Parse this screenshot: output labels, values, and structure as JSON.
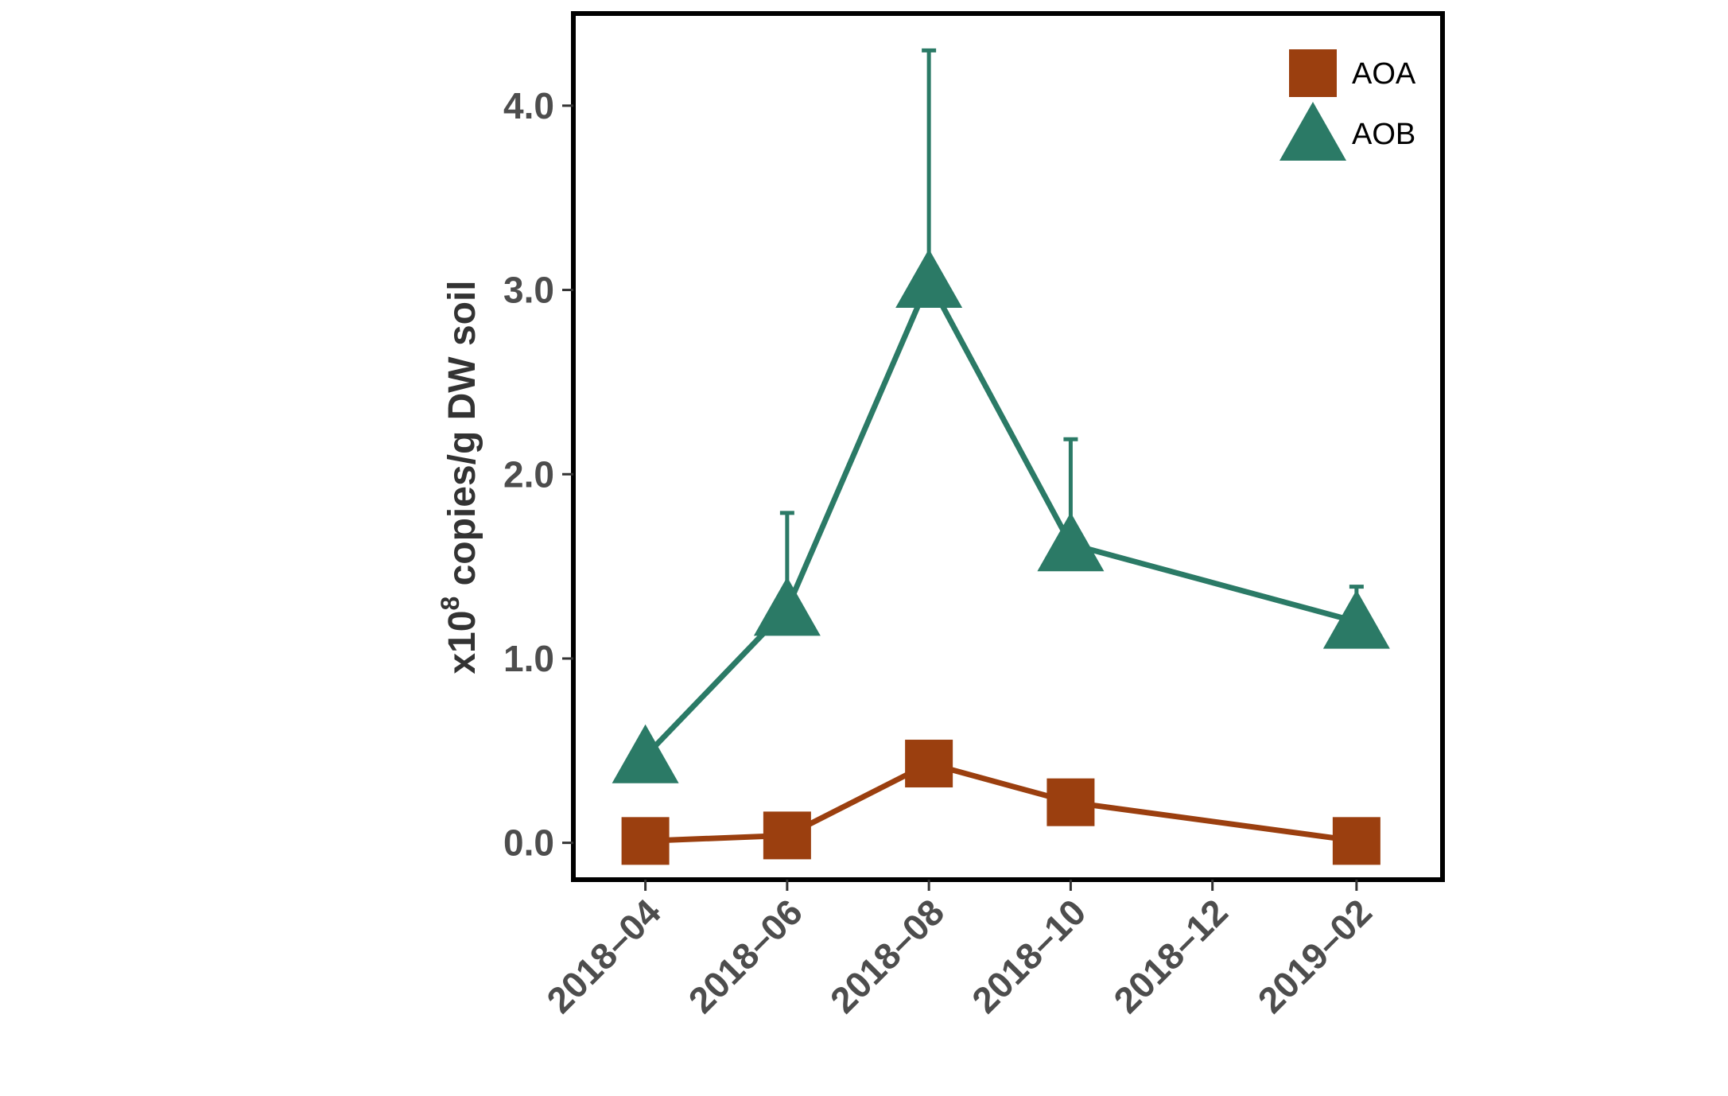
{
  "chart_data": {
    "type": "line",
    "ylabel": {
      "prefix": "x10",
      "superscript": "8",
      "suffix": " copies/g DW soil"
    },
    "ylim": [
      -0.2,
      4.5
    ],
    "yticks": [
      0.0,
      1.0,
      2.0,
      3.0,
      4.0
    ],
    "ytick_labels": [
      "0.0",
      "1.0",
      "2.0",
      "3.0",
      "4.0"
    ],
    "xlim": [
      "2018-03-01",
      "2019-03-10"
    ],
    "xticks": [
      "2018-04-01",
      "2018-06-01",
      "2018-08-01",
      "2018-10-01",
      "2018-12-01",
      "2019-02-01"
    ],
    "xtick_labels": [
      "2018–04",
      "2018–06",
      "2018–08",
      "2018–10",
      "2018–12",
      "2019–02"
    ],
    "grid": false,
    "legend_position": "top-right",
    "series": [
      {
        "name": "AOA",
        "color": "#9b3f0f",
        "marker": "square",
        "x": [
          "2018-04-01",
          "2018-06-01",
          "2018-08-01",
          "2018-10-01",
          "2019-02-01"
        ],
        "y": [
          0.01,
          0.04,
          0.43,
          0.22,
          0.01
        ],
        "yerr_upper": [
          null,
          null,
          null,
          null,
          null
        ]
      },
      {
        "name": "AOB",
        "color": "#2b7a66",
        "marker": "triangle",
        "x": [
          "2018-04-01",
          "2018-06-01",
          "2018-08-01",
          "2018-10-01",
          "2019-02-01"
        ],
        "y": [
          0.47,
          1.27,
          3.05,
          1.62,
          1.2
        ],
        "yerr_upper": [
          null,
          1.79,
          4.3,
          2.19,
          1.39
        ]
      }
    ]
  }
}
